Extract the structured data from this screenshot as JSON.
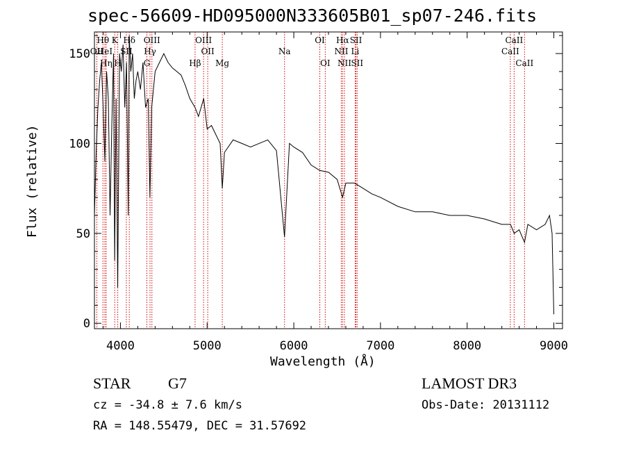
{
  "chart_data": {
    "type": "line",
    "title": "spec-56609-HD095000N333605B01_sp07-246.fits",
    "xlabel": "Wavelength (Å)",
    "ylabel": "Flux (relative)",
    "xlim": [
      3700,
      9100
    ],
    "ylim": [
      -3,
      162
    ],
    "xticks": [
      4000,
      5000,
      6000,
      7000,
      8000,
      9000
    ],
    "yticks": [
      0,
      50,
      100,
      150
    ],
    "series": [
      {
        "name": "flux",
        "x": [
          3700,
          3720,
          3740,
          3760,
          3780,
          3800,
          3820,
          3840,
          3860,
          3880,
          3900,
          3920,
          3933,
          3950,
          3968,
          3990,
          4010,
          4030,
          4050,
          4070,
          4090,
          4101,
          4120,
          4140,
          4160,
          4180,
          4200,
          4230,
          4260,
          4290,
          4320,
          4340,
          4360,
          4400,
          4450,
          4500,
          4550,
          4600,
          4650,
          4700,
          4750,
          4800,
          4861,
          4900,
          4960,
          5000,
          5050,
          5100,
          5150,
          5175,
          5200,
          5300,
          5400,
          5500,
          5600,
          5700,
          5800,
          5893,
          5950,
          6000,
          6100,
          6200,
          6300,
          6400,
          6500,
          6563,
          6600,
          6700,
          6800,
          6900,
          7000,
          7200,
          7400,
          7600,
          7800,
          8000,
          8200,
          8400,
          8500,
          8542,
          8600,
          8662,
          8700,
          8800,
          8900,
          8950,
          8980,
          9000
        ],
        "y": [
          60,
          95,
          120,
          135,
          145,
          120,
          90,
          140,
          125,
          60,
          110,
          150,
          35,
          125,
          20,
          150,
          140,
          155,
          120,
          145,
          60,
          160,
          140,
          150,
          125,
          135,
          140,
          130,
          145,
          120,
          125,
          70,
          120,
          140,
          145,
          150,
          145,
          142,
          140,
          138,
          132,
          125,
          120,
          115,
          125,
          108,
          110,
          105,
          100,
          75,
          95,
          102,
          100,
          98,
          100,
          102,
          96,
          48,
          100,
          98,
          95,
          88,
          85,
          84,
          80,
          70,
          78,
          78,
          75,
          72,
          70,
          65,
          62,
          62,
          60,
          60,
          58,
          55,
          55,
          50,
          52,
          45,
          55,
          52,
          55,
          60,
          50,
          5
        ]
      }
    ],
    "annotations": [
      {
        "label": "Hθ",
        "x": 3798,
        "row": 1
      },
      {
        "label": "OII",
        "x": 3727,
        "row": 2
      },
      {
        "label": "HeI",
        "x": 3820,
        "row": 2
      },
      {
        "label": "Hη",
        "x": 3835,
        "row": 3
      },
      {
        "label": "K",
        "x": 3934,
        "row": 1
      },
      {
        "label": "SII",
        "x": 4068,
        "row": 2
      },
      {
        "label": "H",
        "x": 3969,
        "row": 3
      },
      {
        "label": "Hδ",
        "x": 4102,
        "row": 1
      },
      {
        "label": "OIII",
        "x": 4363,
        "row": 1
      },
      {
        "label": "Hγ",
        "x": 4341,
        "row": 2
      },
      {
        "label": "G",
        "x": 4305,
        "row": 3
      },
      {
        "label": "OIII",
        "x": 4959,
        "row": 1
      },
      {
        "label": "OII",
        "x": 5007,
        "row": 2
      },
      {
        "label": "Hβ",
        "x": 4861,
        "row": 3
      },
      {
        "label": "Mg",
        "x": 5175,
        "row": 3
      },
      {
        "label": "Na",
        "x": 5893,
        "row": 2
      },
      {
        "label": "OI",
        "x": 6300,
        "row": 1
      },
      {
        "label": "OI",
        "x": 6363,
        "row": 3
      },
      {
        "label": "Hα",
        "x": 6563,
        "row": 1
      },
      {
        "label": "SII",
        "x": 6717,
        "row": 1
      },
      {
        "label": "NII",
        "x": 6548,
        "row": 2
      },
      {
        "label": "Li",
        "x": 6708,
        "row": 2
      },
      {
        "label": "NII",
        "x": 6584,
        "row": 3
      },
      {
        "label": "SII",
        "x": 6731,
        "row": 3
      },
      {
        "label": "CaII",
        "x": 8542,
        "row": 1
      },
      {
        "label": "CaII",
        "x": 8498,
        "row": 2
      },
      {
        "label": "CaII",
        "x": 8662,
        "row": 3
      }
    ]
  },
  "info": {
    "class_label": "STAR",
    "subclass": "G7",
    "survey": "LAMOST DR3",
    "velocity": "cz = -34.8 ± 7.6 km/s",
    "obs_date": "Obs-Date: 20131112",
    "coords": "RA = 148.55479, DEC =  31.57692"
  },
  "colors": {
    "line_marker": "#cc0000",
    "spectrum": "#000000"
  }
}
